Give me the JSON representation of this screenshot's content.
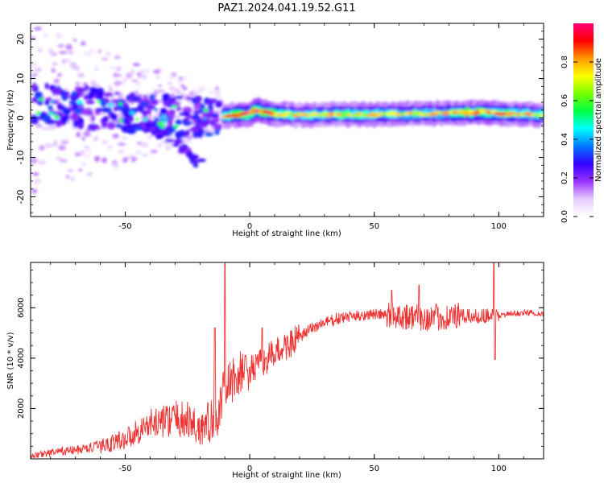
{
  "title": "PAZ1.2024.041.19.52.G11",
  "chart_data": [
    {
      "type": "heatmap",
      "xlabel": "Height of straight line (km)",
      "ylabel": "Frequency (Hz)",
      "xlim": [
        -88,
        118
      ],
      "ylim": [
        -25,
        24
      ],
      "xticks": [
        -50,
        0,
        50,
        100
      ],
      "xtick_labels": [
        "-50",
        "0",
        "50",
        "100"
      ],
      "yticks": [
        -20,
        -10,
        0,
        10,
        20
      ],
      "ytick_labels": [
        "-20",
        "-10",
        "0",
        "10",
        "20"
      ],
      "colorbar": {
        "label": "Normalized spectral amplitude",
        "range": [
          0,
          1
        ],
        "ticks": [
          0.0,
          0.2,
          0.4,
          0.6,
          0.8
        ],
        "tick_labels": [
          "0.0",
          "0.2",
          "0.4",
          "0.6",
          "0.8"
        ],
        "colormap": [
          "#ffffff",
          "#e6ccff",
          "#9933ff",
          "#3300ff",
          "#0077ff",
          "#00ffff",
          "#00ff44",
          "#77ff00",
          "#ffff00",
          "#ff9900",
          "#ff0000",
          "#ff0077"
        ]
      },
      "ridge": {
        "x": [
          -10,
          0,
          2,
          10,
          20,
          40,
          60,
          80,
          95,
          100,
          118
        ],
        "freq": [
          0.5,
          1.0,
          2.0,
          1.0,
          0.8,
          0.9,
          1.0,
          1.2,
          1.5,
          1.2,
          0.8
        ],
        "amplitude": [
          0.8,
          0.9,
          0.9,
          0.8,
          0.7,
          0.75,
          0.7,
          0.75,
          0.85,
          0.8,
          0.7
        ]
      },
      "scatter_region": {
        "x_range": [
          -88,
          -12
        ],
        "descending_branch": {
          "x": [
            -45,
            -38,
            -30,
            -25,
            -20
          ],
          "freq": [
            -1,
            -3,
            -6,
            -8,
            -12
          ]
        },
        "amplitude_range": [
          0.1,
          0.4
        ]
      }
    },
    {
      "type": "line",
      "xlabel": "Height of straight line (km)",
      "ylabel": "SNR (10 * v/v)",
      "xlim": [
        -88,
        118
      ],
      "ylim": [
        0,
        7800
      ],
      "xticks": [
        -50,
        0,
        50,
        100
      ],
      "xtick_labels": [
        "-50",
        "0",
        "50",
        "100"
      ],
      "yticks": [
        2000,
        4000,
        6000
      ],
      "ytick_labels": [
        "2000",
        "4000",
        "6000"
      ],
      "series": [
        {
          "color": "#ee3333",
          "x": [
            -88,
            -80,
            -70,
            -60,
            -50,
            -40,
            -30,
            -25,
            -20,
            -15,
            -12,
            -10,
            -8,
            -5,
            -2,
            0,
            5,
            10,
            15,
            20,
            25,
            30,
            35,
            40,
            45,
            50,
            55,
            60,
            65,
            70,
            75,
            80,
            85,
            90,
            95,
            98,
            100,
            105,
            110,
            115,
            118
          ],
          "y": [
            100,
            250,
            350,
            500,
            800,
            1400,
            1600,
            1500,
            1200,
            1500,
            2000,
            2800,
            3000,
            3300,
            3500,
            3500,
            3800,
            4200,
            4500,
            4800,
            5200,
            5400,
            5550,
            5650,
            5700,
            5750,
            5700,
            5700,
            5650,
            5600,
            5600,
            5650,
            5650,
            5650,
            5700,
            5700,
            5700,
            5750,
            5800,
            5800,
            5750
          ],
          "spikes": [
            {
              "x": -10,
              "y": 7700
            },
            {
              "x": -14,
              "y": 5200
            },
            {
              "x": 5,
              "y": 5200
            },
            {
              "x": 57,
              "y": 6700
            },
            {
              "x": 68,
              "y": 6900
            },
            {
              "x": 98,
              "y": 7900
            },
            {
              "x": 98.5,
              "y": 3950
            }
          ]
        }
      ]
    }
  ]
}
